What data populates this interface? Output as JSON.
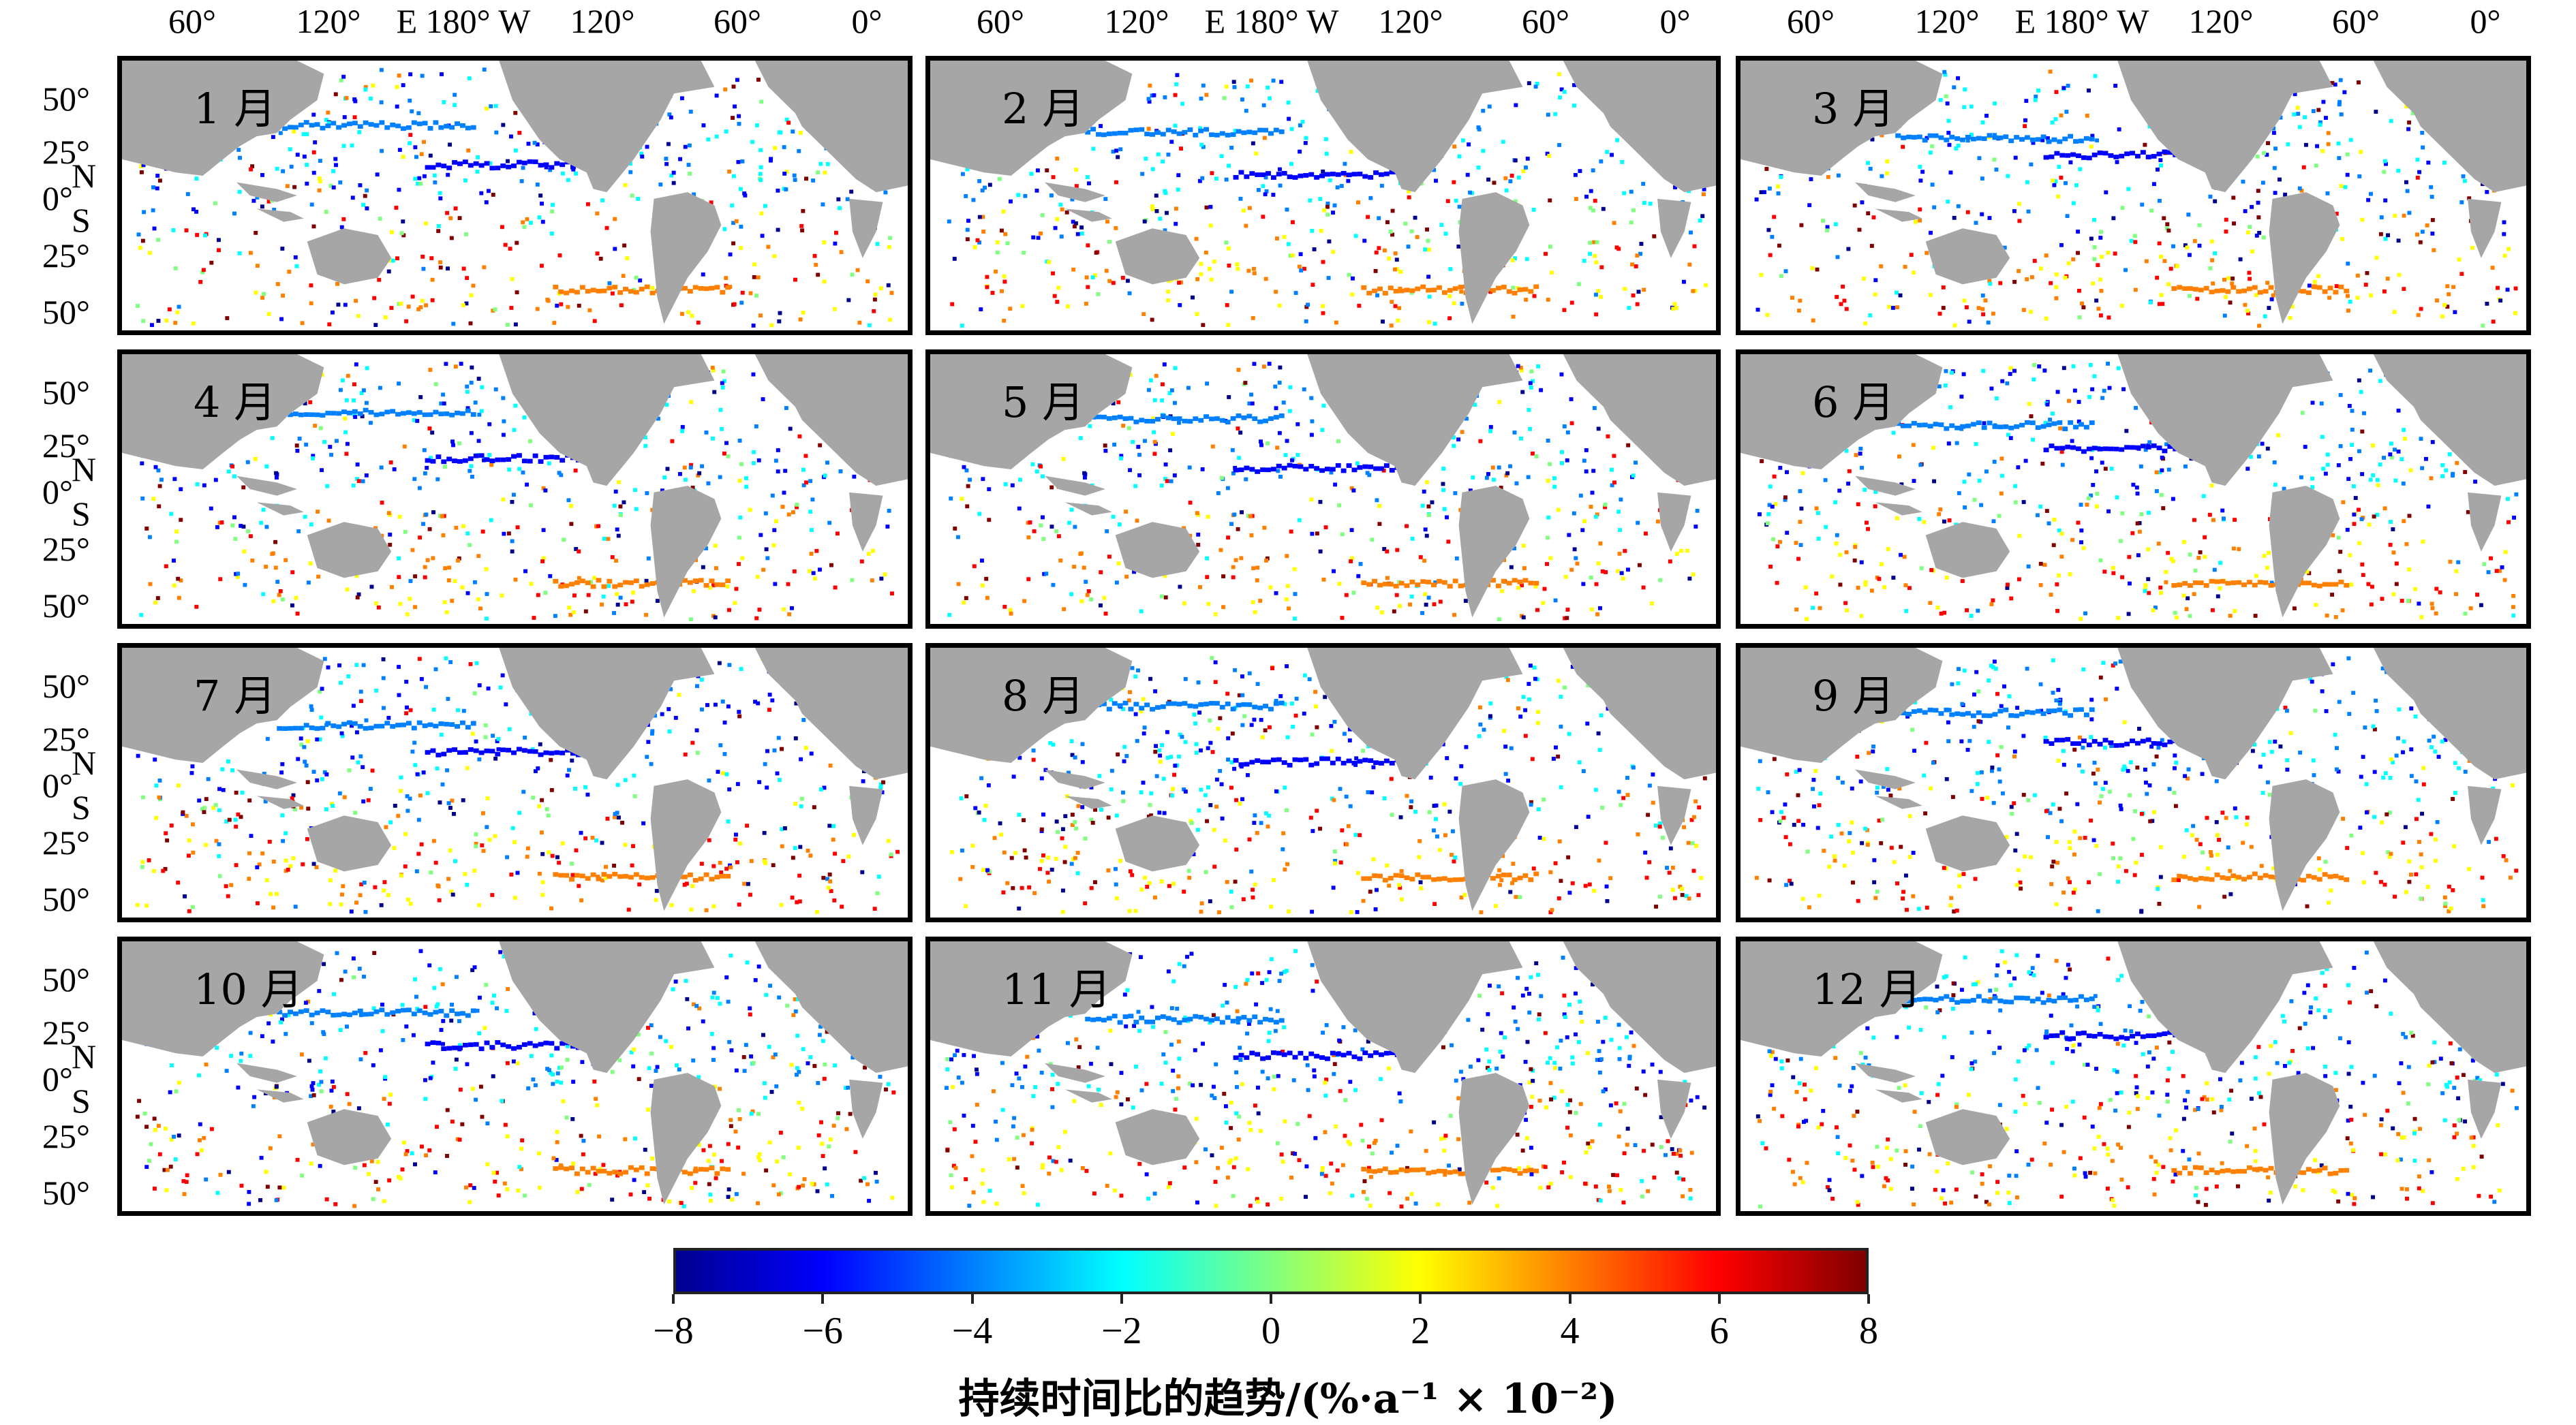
{
  "colors": {
    "land": "#a6a6a6",
    "ocean": "#ffffff",
    "frame": "#000000",
    "colormap": [
      "#00008f",
      "#0000ff",
      "#0080ff",
      "#00ffff",
      "#80ff80",
      "#ffff00",
      "#ff8000",
      "#ff0000",
      "#800000"
    ]
  },
  "top_lon_labels": [
    "60°",
    "120°",
    "E 180° W",
    "120°",
    "60°",
    "0°"
  ],
  "lat_labels": [
    "50°",
    "25°",
    "N",
    "0°",
    "S",
    "25°",
    "50°"
  ],
  "panels": [
    {
      "month": "1 月"
    },
    {
      "month": "2 月"
    },
    {
      "month": "3 月"
    },
    {
      "month": "4 月"
    },
    {
      "month": "5 月"
    },
    {
      "month": "6 月"
    },
    {
      "month": "7 月"
    },
    {
      "month": "8 月"
    },
    {
      "month": "9 月"
    },
    {
      "month": "10 月"
    },
    {
      "month": "11 月"
    },
    {
      "month": "12 月"
    }
  ],
  "colorbar": {
    "ticks": [
      "−8",
      "−6",
      "−4",
      "−2",
      "0",
      "2",
      "4",
      "6",
      "8"
    ],
    "range": [
      -8,
      8
    ],
    "title": "持续时间比的趋势/(%·a⁻¹ × 10⁻²)"
  }
}
